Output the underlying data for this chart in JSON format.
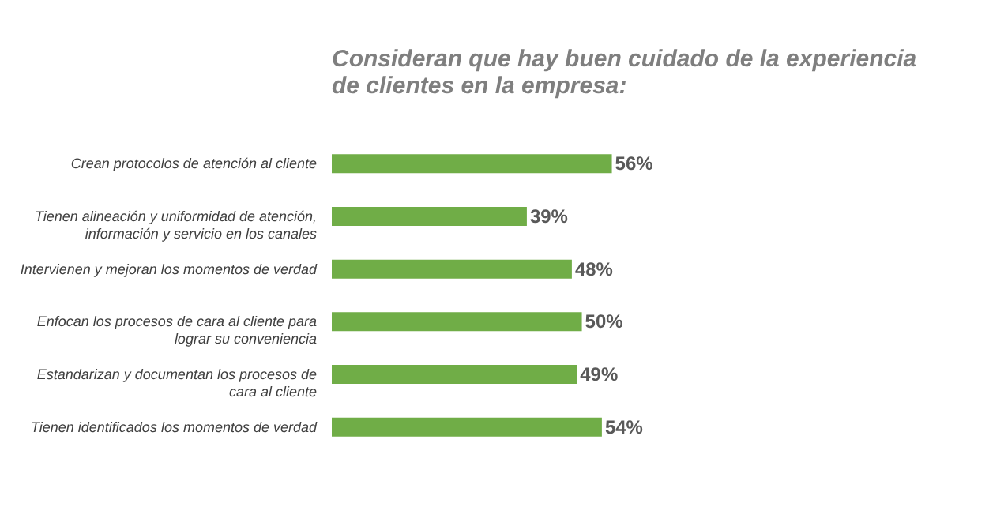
{
  "chart_data": {
    "type": "bar",
    "orientation": "horizontal",
    "title": "Consideran que hay buen cuidado de la experiencia de clientes en la empresa:",
    "categories": [
      "Crean protocolos de atención al cliente",
      "Tienen alineación y uniformidad de atención, información y servicio en los canales",
      "Intervienen y mejoran los momentos de verdad",
      "Enfocan los procesos de cara al cliente para lograr su conveniencia",
      "Estandarizan y documentan  los procesos de cara al cliente",
      "Tienen identificados los momentos de verdad"
    ],
    "values": [
      56,
      39,
      48,
      50,
      49,
      54
    ],
    "value_labels": [
      "56%",
      "39%",
      "48%",
      "50%",
      "49%",
      "54%"
    ],
    "color": "#70ad47",
    "grid": false
  }
}
